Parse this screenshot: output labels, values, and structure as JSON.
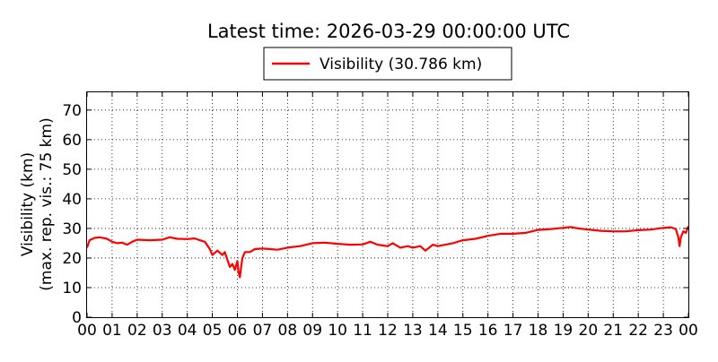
{
  "chart_data": {
    "type": "line",
    "title": "Latest time: 2026-03-29 00:00:00 UTC",
    "ylabel_line1": "Visibility (km)",
    "ylabel_line2": "(max. rep. vis.: 75 km)",
    "xlabel": "",
    "xlim": [
      0,
      24
    ],
    "ylim": [
      0,
      76
    ],
    "grid": true,
    "legend_position": "top-center",
    "x_ticks": [
      0,
      1,
      2,
      3,
      4,
      5,
      6,
      7,
      8,
      9,
      10,
      11,
      12,
      13,
      14,
      15,
      16,
      17,
      18,
      19,
      20,
      21,
      22,
      23,
      24
    ],
    "x_tick_labels": [
      "00",
      "01",
      "02",
      "03",
      "04",
      "05",
      "06",
      "07",
      "08",
      "09",
      "10",
      "11",
      "12",
      "13",
      "14",
      "15",
      "16",
      "17",
      "18",
      "19",
      "20",
      "21",
      "22",
      "23",
      "00"
    ],
    "y_ticks": [
      0,
      10,
      20,
      30,
      40,
      50,
      60,
      70
    ],
    "y_tick_labels": [
      "0",
      "10",
      "20",
      "30",
      "40",
      "50",
      "60",
      "70"
    ],
    "series": [
      {
        "name": "Visibility (30.786 km)",
        "color": "#ff0000",
        "x": [
          0,
          0.1,
          0.3,
          0.5,
          0.8,
          1.0,
          1.2,
          1.4,
          1.6,
          1.8,
          2.0,
          2.5,
          3.0,
          3.3,
          3.6,
          4.0,
          4.3,
          4.5,
          4.7,
          4.9,
          5.0,
          5.2,
          5.4,
          5.5,
          5.6,
          5.7,
          5.8,
          5.9,
          6.0,
          6.05,
          6.1,
          6.15,
          6.2,
          6.3,
          6.5,
          6.7,
          7.0,
          7.3,
          7.6,
          8.0,
          8.5,
          9.0,
          9.5,
          10.0,
          10.5,
          11.0,
          11.3,
          11.6,
          12.0,
          12.2,
          12.5,
          12.8,
          13.0,
          13.3,
          13.5,
          13.8,
          14.0,
          14.3,
          14.6,
          15.0,
          15.5,
          16.0,
          16.5,
          17.0,
          17.5,
          18.0,
          18.5,
          19.0,
          19.3,
          19.6,
          20.0,
          20.5,
          21.0,
          21.5,
          22.0,
          22.5,
          23.0,
          23.3,
          23.5,
          23.6,
          23.65,
          23.7,
          23.8,
          23.9,
          24.0
        ],
        "values": [
          23.5,
          26,
          26.8,
          27,
          26.5,
          25.5,
          25,
          25.2,
          24.5,
          25.5,
          26.2,
          26,
          26.2,
          27,
          26.5,
          26.4,
          26.6,
          26,
          25.5,
          23,
          21,
          22.5,
          21,
          22,
          19.5,
          17,
          18,
          16,
          19,
          15,
          13.5,
          17,
          20,
          22,
          22,
          23,
          23.2,
          23,
          22.8,
          23.5,
          24,
          25,
          25.2,
          24.8,
          24.5,
          24.6,
          25.5,
          24.5,
          24,
          25,
          23.5,
          24,
          23.5,
          24,
          22.5,
          24.5,
          24,
          24.5,
          25,
          26,
          26.5,
          27.5,
          28.2,
          28.2,
          28.5,
          29.5,
          29.8,
          30.2,
          30.5,
          30,
          29.6,
          29.2,
          29,
          29,
          29.4,
          29.6,
          30.2,
          30.4,
          29.8,
          27,
          24,
          27,
          29,
          28.5,
          30.8
        ]
      }
    ]
  }
}
